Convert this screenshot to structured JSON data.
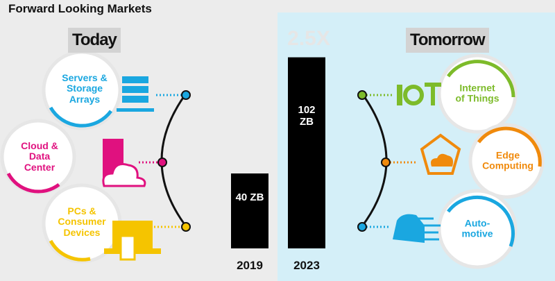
{
  "title": "Forward Looking Markets",
  "today": {
    "label": "Today",
    "markets": [
      "Servers & Storage Arrays",
      "Cloud & Data Center",
      "PCs & Consumer Devices"
    ]
  },
  "tomorrow": {
    "label": "Tomorrow",
    "markets": [
      "Internet of Things",
      "Edge Computing",
      "Auto-motive"
    ]
  },
  "chart_data": {
    "type": "bar",
    "annotation": "2.5X",
    "categories": [
      "2019",
      "2023"
    ],
    "values": [
      40,
      102
    ],
    "value_labels": [
      "40 ZB",
      "102 ZB"
    ],
    "color": "#000000",
    "ylim": [
      0,
      120
    ]
  }
}
